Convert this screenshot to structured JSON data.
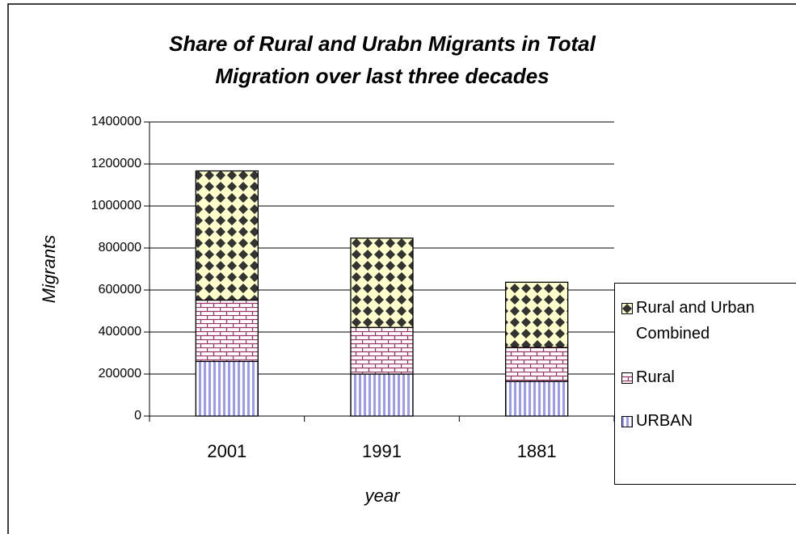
{
  "chart_data": {
    "type": "stacked_bar",
    "title": [
      "Share of Rural and Urabn Migrants in Total",
      "Migration over last three decades"
    ],
    "x_label": "year",
    "y_label": "Migrants",
    "categories": [
      "2001",
      "1991",
      "1881"
    ],
    "series": [
      {
        "name": "URBAN",
        "color": "#9999ff",
        "values": [
          260000,
          200000,
          165000
        ]
      },
      {
        "name": "Rural",
        "color": "#993366",
        "values": [
          292000,
          222000,
          162000
        ]
      },
      {
        "name": "Rural and Urban Combined",
        "color": "#333333",
        "values": [
          615000,
          425000,
          310000
        ]
      }
    ],
    "ylim": [
      0,
      1400000
    ],
    "yticks": [
      0,
      200000,
      400000,
      600000,
      800000,
      1000000,
      1200000,
      1400000
    ],
    "grid": true,
    "legend": "right"
  }
}
